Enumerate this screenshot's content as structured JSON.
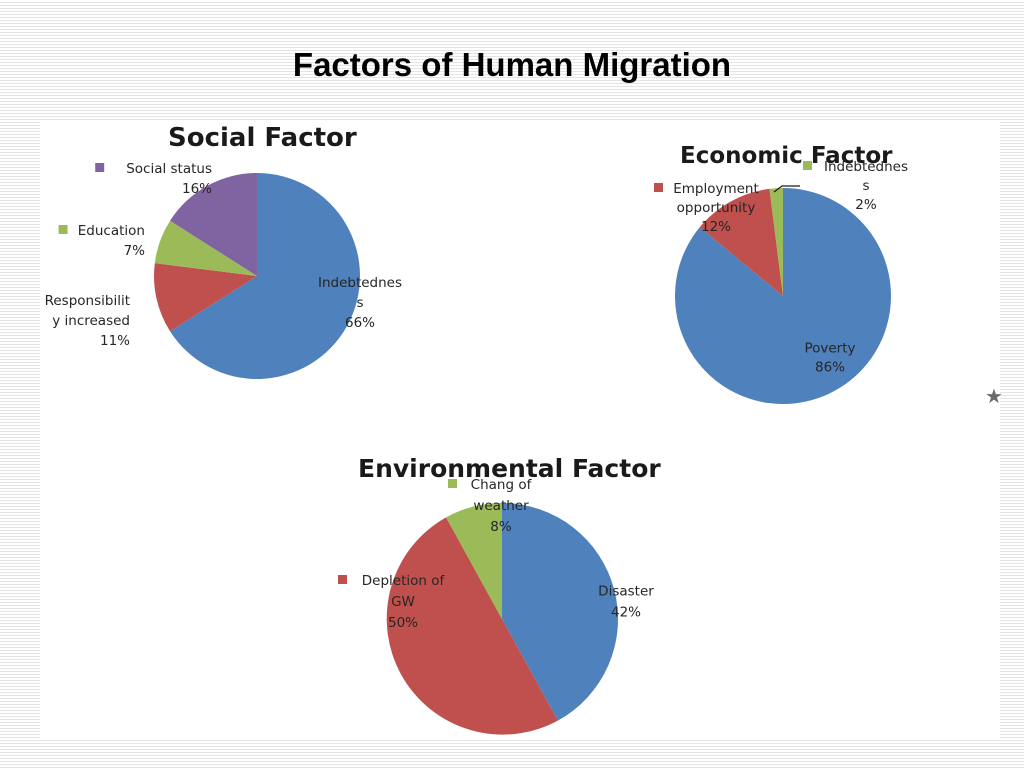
{
  "slide": {
    "title": "Factors of Human Migration",
    "star": "★"
  },
  "chart_data": [
    {
      "type": "pie",
      "title": "Social Factor",
      "slices": [
        {
          "label": [
            "Indebtednes",
            "s"
          ],
          "value": 66,
          "pct": "66%",
          "color": "#4f81bd"
        },
        {
          "label": [
            "Responsibilit",
            "y increased"
          ],
          "value": 11,
          "pct": "11%",
          "color": "#c0504d"
        },
        {
          "label": [
            "Education"
          ],
          "value": 7,
          "pct": "7%",
          "color": "#9bbb59"
        },
        {
          "label": [
            "Social status"
          ],
          "value": 16,
          "pct": "16%",
          "color": "#8064a2"
        }
      ]
    },
    {
      "type": "pie",
      "title": "Economic Factor",
      "slices": [
        {
          "label": [
            "Poverty"
          ],
          "value": 86,
          "pct": "86%",
          "color": "#4f81bd"
        },
        {
          "label": [
            "Employment",
            "opportunity"
          ],
          "value": 12,
          "pct": "12%",
          "color": "#c0504d"
        },
        {
          "label": [
            "Indebtednes",
            "s"
          ],
          "value": 2,
          "pct": "2%",
          "color": "#9bbb59"
        }
      ]
    },
    {
      "type": "pie",
      "title": "Environmental Factor",
      "slices": [
        {
          "label": [
            "Disaster"
          ],
          "value": 42,
          "pct": "42%",
          "color": "#4f81bd"
        },
        {
          "label": [
            "Depletion of",
            "GW"
          ],
          "value": 50,
          "pct": "50%",
          "color": "#c0504d"
        },
        {
          "label": [
            "Chang of",
            "weather"
          ],
          "value": 8,
          "pct": "8%",
          "color": "#9bbb59"
        }
      ]
    }
  ]
}
